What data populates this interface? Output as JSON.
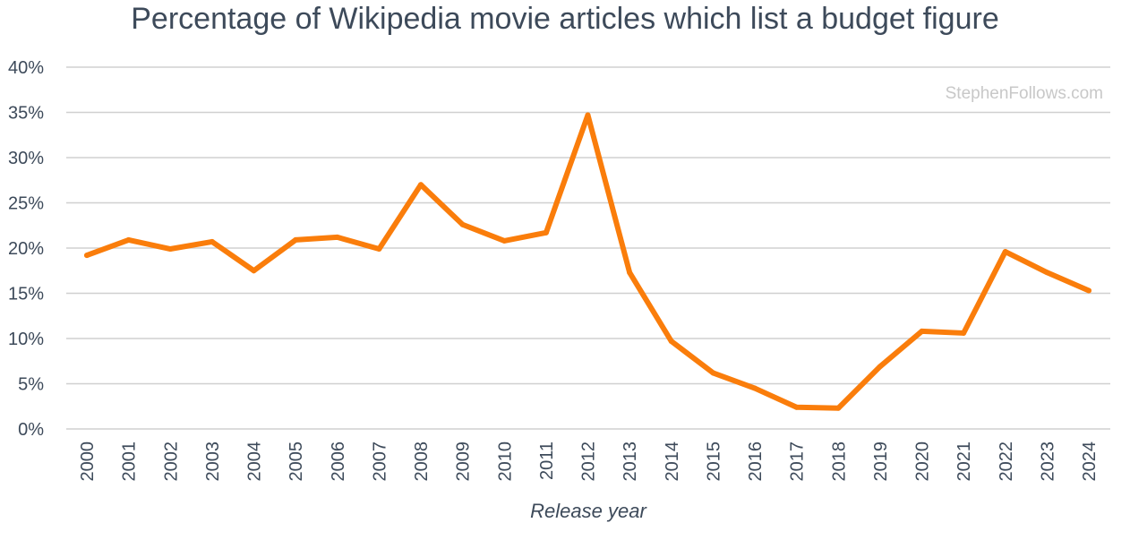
{
  "colors": {
    "series": "#fa7d0b",
    "text": "#3d4a5a",
    "grid": "#d0d0d0",
    "watermark": "#c8c8c8"
  },
  "chart_data": {
    "type": "line",
    "title": "Percentage of Wikipedia movie articles which list a budget figure",
    "xlabel": "Release year",
    "ylabel": "",
    "watermark": "StephenFollows.com",
    "x": [
      "2000",
      "2001",
      "2002",
      "2003",
      "2004",
      "2005",
      "2006",
      "2007",
      "2008",
      "2009",
      "2010",
      "2011",
      "2012",
      "2013",
      "2014",
      "2015",
      "2016",
      "2017",
      "2018",
      "2019",
      "2020",
      "2021",
      "2022",
      "2023",
      "2024"
    ],
    "y_ticks": [
      "0%",
      "5%",
      "10%",
      "15%",
      "20%",
      "25%",
      "30%",
      "35%",
      "40%"
    ],
    "ylim": [
      0,
      40
    ],
    "grid": true,
    "legend": "none",
    "series": [
      {
        "values": [
          19.2,
          20.9,
          19.9,
          20.7,
          17.5,
          20.9,
          21.2,
          19.9,
          27.0,
          22.6,
          20.8,
          21.7,
          34.7,
          17.3,
          9.7,
          6.2,
          4.5,
          2.4,
          2.3,
          6.9,
          10.8,
          10.6,
          19.6,
          17.3,
          15.3
        ]
      }
    ]
  }
}
